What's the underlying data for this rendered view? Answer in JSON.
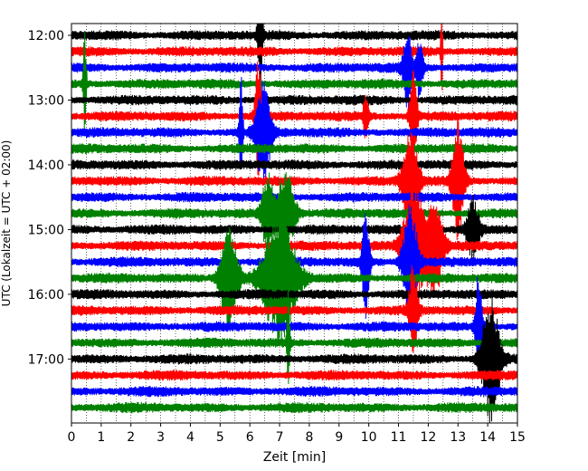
{
  "chart_data": {
    "type": "line",
    "title": "",
    "xlabel": "Zeit  [min]",
    "ylabel": "UTC (Lokalzeit = UTC + 02:00)",
    "xlim": [
      0,
      15
    ],
    "x_ticks": [
      0,
      1,
      2,
      3,
      4,
      5,
      6,
      7,
      8,
      9,
      10,
      11,
      12,
      13,
      14,
      15
    ],
    "y_ticks": [
      {
        "label": "12:00",
        "trace": 0
      },
      {
        "label": "13:00",
        "trace": 4
      },
      {
        "label": "14:00",
        "trace": 8
      },
      {
        "label": "15:00",
        "trace": 12
      },
      {
        "label": "16:00",
        "trace": 16
      },
      {
        "label": "17:00",
        "trace": 20
      }
    ],
    "grid": {
      "x_minor_dotted": true
    },
    "trace_colors": [
      "#000000",
      "#ff0000",
      "#0000ff",
      "#008000"
    ],
    "trace_count": 24,
    "trace_interval_minutes": 15,
    "events": [
      {
        "trace": 0,
        "x": 6.35,
        "amp": 1.0,
        "dur": 0.08
      },
      {
        "trace": 3,
        "x": 0.45,
        "amp": 1.0,
        "dur": 0.05
      },
      {
        "trace": 2,
        "x": 11.3,
        "amp": 0.6,
        "dur": 0.15
      },
      {
        "trace": 2,
        "x": 11.7,
        "amp": 0.45,
        "dur": 0.12
      },
      {
        "trace": 1,
        "x": 12.45,
        "amp": 1.0,
        "dur": 0.03
      },
      {
        "trace": 5,
        "x": 6.3,
        "amp": 1.0,
        "dur": 0.12
      },
      {
        "trace": 6,
        "x": 6.45,
        "amp": 0.8,
        "dur": 0.25
      },
      {
        "trace": 6,
        "x": 5.7,
        "amp": 0.9,
        "dur": 0.06
      },
      {
        "trace": 5,
        "x": 9.9,
        "amp": 0.4,
        "dur": 0.08
      },
      {
        "trace": 5,
        "x": 11.5,
        "amp": 0.8,
        "dur": 0.12
      },
      {
        "trace": 9,
        "x": 13.0,
        "amp": 0.9,
        "dur": 0.2
      },
      {
        "trace": 9,
        "x": 11.4,
        "amp": 0.9,
        "dur": 0.25
      },
      {
        "trace": 11,
        "x": 6.6,
        "amp": 0.6,
        "dur": 0.2
      },
      {
        "trace": 11,
        "x": 7.2,
        "amp": 0.7,
        "dur": 0.3
      },
      {
        "trace": 12,
        "x": 13.5,
        "amp": 0.5,
        "dur": 0.2
      },
      {
        "trace": 13,
        "x": 11.5,
        "amp": 1.0,
        "dur": 0.35
      },
      {
        "trace": 13,
        "x": 12.2,
        "amp": 0.8,
        "dur": 0.3
      },
      {
        "trace": 14,
        "x": 9.9,
        "amp": 0.9,
        "dur": 0.12
      },
      {
        "trace": 14,
        "x": 11.4,
        "amp": 0.9,
        "dur": 0.25
      },
      {
        "trace": 15,
        "x": 7.0,
        "amp": 1.0,
        "dur": 0.55
      },
      {
        "trace": 15,
        "x": 5.3,
        "amp": 0.8,
        "dur": 0.3
      },
      {
        "trace": 17,
        "x": 11.5,
        "amp": 0.7,
        "dur": 0.15
      },
      {
        "trace": 18,
        "x": 13.7,
        "amp": 0.9,
        "dur": 0.12
      },
      {
        "trace": 20,
        "x": 14.1,
        "amp": 1.0,
        "dur": 0.3
      },
      {
        "trace": 19,
        "x": 7.3,
        "amp": 0.9,
        "dur": 0.05
      }
    ]
  }
}
